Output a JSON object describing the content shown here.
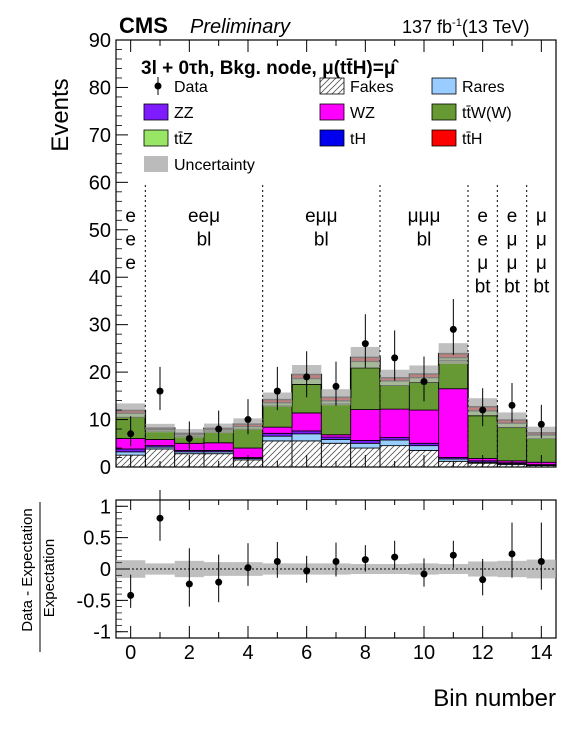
{
  "header": {
    "experiment": "CMS",
    "status": "Preliminary",
    "lumi": "137 fb",
    "lumi_sup": "-1",
    "energy": "(13 TeV)"
  },
  "chart_data": [
    {
      "type": "bar",
      "stacked": true,
      "title": "3l + 0τh, Bkg. node, μ(tt̄H)=μ̂",
      "ylabel": "Events",
      "xlabel": "Bin number",
      "ylim": [
        0,
        90
      ],
      "xlim": [
        -0.5,
        14.5
      ],
      "yticks": [
        0,
        10,
        20,
        30,
        40,
        50,
        60,
        70,
        80,
        90
      ],
      "legend_placement": "top, three columns",
      "legend": [
        {
          "label": "Data",
          "kind": "marker"
        },
        {
          "label": "Fakes",
          "kind": "hatch"
        },
        {
          "label": "Rares",
          "kind": "fill",
          "color": "#99ccff"
        },
        {
          "label": "ZZ",
          "kind": "fill",
          "color": "#7f1cff"
        },
        {
          "label": "WZ",
          "kind": "fill",
          "color": "#ff00ff"
        },
        {
          "label": "tt̄W(W)",
          "kind": "fill",
          "color": "#669933"
        },
        {
          "label": "tt̄Z",
          "kind": "fill",
          "color": "#99e566"
        },
        {
          "label": "tH",
          "kind": "fill",
          "color": "#0000ee"
        },
        {
          "label": "tt̄H",
          "kind": "fill",
          "color": "#ff0000"
        },
        {
          "label": "Uncertainty",
          "kind": "fill",
          "color": "#bbbbbb"
        }
      ],
      "categories": [
        0,
        1,
        2,
        3,
        4,
        5,
        6,
        7,
        8,
        9,
        10,
        11,
        12,
        13,
        14
      ],
      "series": [
        {
          "name": "Fakes",
          "color": "#ffffff",
          "hatch": true,
          "values": [
            2.5,
            3.8,
            2.8,
            2.8,
            1.5,
            5.5,
            5.5,
            5.0,
            4.0,
            4.5,
            3.5,
            1.2,
            0.8,
            0.5,
            0.3
          ]
        },
        {
          "name": "Rares",
          "color": "#99ccff",
          "values": [
            0.7,
            0.4,
            0.4,
            0.4,
            0.3,
            1.0,
            1.5,
            0.8,
            1.0,
            1.2,
            1.0,
            0.5,
            0.2,
            0.2,
            0.1
          ]
        },
        {
          "name": "ZZ",
          "color": "#7f1cff",
          "values": [
            0.6,
            0.3,
            0.3,
            0.3,
            0.2,
            0.6,
            0.6,
            0.5,
            0.6,
            0.5,
            0.5,
            0.3,
            0.3,
            0.2,
            0.1
          ]
        },
        {
          "name": "WZ",
          "color": "#ff00ff",
          "values": [
            2.2,
            1.3,
            1.5,
            1.6,
            2.0,
            1.3,
            3.8,
            0.5,
            6.5,
            6.0,
            7.0,
            14.5,
            0.5,
            0.4,
            0.5
          ]
        },
        {
          "name": "tt̄W(W)",
          "color": "#669933",
          "values": [
            4.5,
            1.8,
            1.5,
            2.3,
            4.0,
            4.5,
            6.0,
            6.5,
            8.8,
            5.0,
            5.8,
            6.0,
            9.0,
            7.0,
            5.0
          ]
        },
        {
          "name": "tt̄Z",
          "color": "#99e566",
          "values": [
            0.8,
            0.3,
            0.3,
            0.4,
            0.5,
            0.6,
            1.2,
            0.6,
            1.3,
            0.9,
            1.0,
            0.5,
            1.0,
            0.9,
            0.7
          ]
        },
        {
          "name": "tH",
          "color": "#0000ee",
          "values": [
            0.1,
            0.05,
            0.05,
            0.05,
            0.05,
            0.1,
            0.1,
            0.1,
            0.1,
            0.1,
            0.1,
            0.1,
            0.1,
            0.1,
            0.1
          ]
        },
        {
          "name": "tt̄H",
          "color": "#ff0000",
          "values": [
            0.5,
            0.25,
            0.25,
            0.3,
            0.5,
            0.6,
            0.8,
            0.7,
            0.8,
            0.6,
            0.7,
            0.8,
            0.8,
            0.6,
            0.4
          ]
        }
      ],
      "uncertainty": [
        1.5,
        0.9,
        0.9,
        1.0,
        1.2,
        1.5,
        2.0,
        1.7,
        2.2,
        1.7,
        1.8,
        2.2,
        1.8,
        1.6,
        1.3
      ],
      "data": {
        "y": [
          7,
          16,
          6,
          8,
          10,
          16,
          19,
          17,
          26,
          23,
          18,
          29,
          12,
          13,
          9
        ],
        "err_up": [
          3.7,
          5.1,
          3.6,
          3.9,
          4.3,
          5.1,
          5.4,
          5.2,
          6.2,
          5.8,
          5.3,
          6.4,
          4.6,
          4.7,
          4.1
        ],
        "err_down": [
          2.6,
          4.0,
          2.4,
          2.8,
          3.1,
          4.0,
          4.3,
          4.1,
          5.1,
          4.8,
          4.2,
          5.4,
          3.4,
          3.6,
          2.9
        ]
      },
      "region_boundaries": [
        0.5,
        4.5,
        8.5,
        11.5,
        12.5,
        13.5
      ],
      "region_labels": [
        {
          "lines": [
            "e",
            "e",
            "e"
          ],
          "at": 0
        },
        {
          "lines": [
            "eeμ",
            "bl"
          ],
          "at": 2.5
        },
        {
          "lines": [
            "eμμ",
            "bl"
          ],
          "at": 6.5
        },
        {
          "lines": [
            "μμμ",
            "bl"
          ],
          "at": 10
        },
        {
          "lines": [
            "e",
            "e",
            "μ",
            "bt"
          ],
          "at": 12
        },
        {
          "lines": [
            "e",
            "μ",
            "μ",
            "bt"
          ],
          "at": 13
        },
        {
          "lines": [
            "μ",
            "μ",
            "μ",
            "bt"
          ],
          "at": 14
        }
      ]
    },
    {
      "type": "scatter",
      "ylabel_top": "Data - Expectation",
      "ylabel_bottom": "Expectation",
      "xlabel": "Bin number",
      "ylim": [
        -1.1,
        1.1
      ],
      "yticks": [
        -1,
        -0.5,
        0,
        0.5,
        1
      ],
      "xticks": [
        0,
        2,
        4,
        6,
        8,
        10,
        12,
        14
      ],
      "x": [
        0,
        1,
        2,
        3,
        4,
        5,
        6,
        7,
        8,
        9,
        10,
        11,
        12,
        13,
        14
      ],
      "y": [
        -0.42,
        0.81,
        -0.24,
        -0.21,
        0.02,
        0.12,
        -0.03,
        0.12,
        0.15,
        0.19,
        -0.08,
        0.22,
        -0.17,
        0.24,
        0.12
      ],
      "err_up": [
        0.33,
        0.45,
        0.57,
        0.44,
        0.39,
        0.31,
        0.24,
        0.3,
        0.23,
        0.26,
        0.25,
        0.23,
        0.33,
        0.5,
        0.62
      ],
      "err_down": [
        0.2,
        0.36,
        0.36,
        0.32,
        0.29,
        0.26,
        0.19,
        0.24,
        0.19,
        0.2,
        0.2,
        0.2,
        0.25,
        0.38,
        0.45
      ],
      "band": [
        0.14,
        0.09,
        0.13,
        0.11,
        0.11,
        0.09,
        0.09,
        0.09,
        0.08,
        0.08,
        0.09,
        0.08,
        0.12,
        0.13,
        0.15
      ]
    }
  ]
}
